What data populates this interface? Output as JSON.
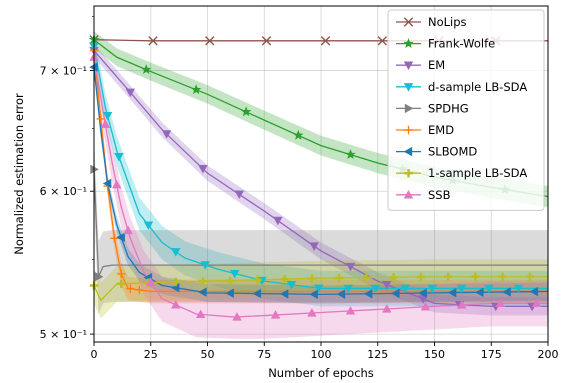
{
  "chart_data": {
    "type": "line",
    "xlabel": "Number of epochs",
    "ylabel": "Normalized estimation error",
    "xlim": [
      0,
      200
    ],
    "ylim": [
      0.495,
      0.76
    ],
    "yscale": "log",
    "grid": true,
    "legend_position": "top-right",
    "x_ticks": [
      0,
      25,
      50,
      75,
      100,
      125,
      150,
      175,
      200
    ],
    "x_tick_labels": [
      "0",
      "25",
      "50",
      "75",
      "100",
      "125",
      "150",
      "175",
      "200"
    ],
    "y_ticks": [
      0.5,
      0.6,
      0.7
    ],
    "y_tick_labels": [
      "5 × 10⁻¹",
      "6 × 10⁻¹",
      "7 × 10⁻¹"
    ],
    "series": [
      {
        "name": "NoLips",
        "color": "#8c564b",
        "marker": "x",
        "band": 0.0,
        "points": [
          [
            0,
            0.728
          ],
          [
            25,
            0.727
          ],
          [
            50,
            0.727
          ],
          [
            75,
            0.727
          ],
          [
            100,
            0.727
          ],
          [
            125,
            0.727
          ],
          [
            150,
            0.727
          ],
          [
            175,
            0.727
          ],
          [
            200,
            0.727
          ]
        ],
        "marker_x": [
          0,
          26,
          51,
          76,
          102,
          127,
          152,
          177
        ]
      },
      {
        "name": "Frank-Wolfe",
        "color": "#2ca02c",
        "marker": "star",
        "band": 0.008,
        "points": [
          [
            0,
            0.728
          ],
          [
            10,
            0.712
          ],
          [
            25,
            0.699
          ],
          [
            50,
            0.679
          ],
          [
            75,
            0.657
          ],
          [
            100,
            0.636
          ],
          [
            125,
            0.622
          ],
          [
            150,
            0.611
          ],
          [
            175,
            0.603
          ],
          [
            200,
            0.596
          ]
        ],
        "marker_x": [
          0,
          23,
          45,
          67,
          90,
          113,
          136,
          158,
          181
        ]
      },
      {
        "name": "EM",
        "color": "#9467bd",
        "marker": "tri_down",
        "band": 0.006,
        "points": [
          [
            0,
            0.718
          ],
          [
            15,
            0.683
          ],
          [
            30,
            0.649
          ],
          [
            50,
            0.614
          ],
          [
            75,
            0.585
          ],
          [
            100,
            0.556
          ],
          [
            125,
            0.535
          ],
          [
            150,
            0.52
          ],
          [
            175,
            0.518
          ],
          [
            200,
            0.518
          ]
        ],
        "marker_x": [
          0,
          16,
          32,
          48,
          64,
          81,
          97,
          113,
          129,
          145,
          161,
          177,
          193
        ]
      },
      {
        "name": "d-sample LB-SDA",
        "color": "#17becf",
        "marker": "tri_down",
        "band": 0.012,
        "points": [
          [
            0,
            0.722
          ],
          [
            5,
            0.668
          ],
          [
            10,
            0.632
          ],
          [
            20,
            0.583
          ],
          [
            30,
            0.562
          ],
          [
            40,
            0.551
          ],
          [
            55,
            0.543
          ],
          [
            75,
            0.535
          ],
          [
            100,
            0.53
          ],
          [
            125,
            0.53
          ],
          [
            150,
            0.53
          ],
          [
            175,
            0.53
          ],
          [
            200,
            0.53
          ]
        ],
        "marker_x": [
          0,
          6,
          11,
          24,
          36,
          49,
          62,
          74,
          87,
          99,
          112,
          124,
          137,
          149,
          162,
          174,
          187
        ]
      },
      {
        "name": "SPDHG",
        "color": "#7f7f7f",
        "marker": "tri_right",
        "band": 0.025,
        "points": [
          [
            0,
            0.617
          ],
          [
            2,
            0.538
          ],
          [
            4,
            0.545
          ],
          [
            8,
            0.546
          ],
          [
            20,
            0.546
          ],
          [
            50,
            0.546
          ],
          [
            100,
            0.546
          ],
          [
            150,
            0.546
          ],
          [
            200,
            0.546
          ]
        ],
        "marker_x": [
          0,
          2
        ]
      },
      {
        "name": "EMD",
        "color": "#ff7f0e",
        "marker": "plus",
        "band": 0.008,
        "points": [
          [
            0,
            0.718
          ],
          [
            3,
            0.658
          ],
          [
            6,
            0.604
          ],
          [
            9,
            0.565
          ],
          [
            12,
            0.54
          ],
          [
            15,
            0.53
          ],
          [
            25,
            0.528
          ],
          [
            50,
            0.528
          ],
          [
            100,
            0.528
          ],
          [
            150,
            0.528
          ],
          [
            200,
            0.528
          ]
        ],
        "marker_x": [
          0,
          3,
          6,
          9,
          12,
          16,
          20
        ]
      },
      {
        "name": "SLBOMD",
        "color": "#1f77b4",
        "marker": "tri_left",
        "band": 0.006,
        "points": [
          [
            0,
            0.703
          ],
          [
            3,
            0.648
          ],
          [
            6,
            0.606
          ],
          [
            10,
            0.575
          ],
          [
            15,
            0.552
          ],
          [
            20,
            0.541
          ],
          [
            30,
            0.532
          ],
          [
            50,
            0.527
          ],
          [
            100,
            0.526
          ],
          [
            150,
            0.527
          ],
          [
            200,
            0.528
          ]
        ],
        "marker_x": [
          0,
          6,
          12,
          24,
          36,
          48,
          60,
          72,
          84,
          97,
          109,
          121,
          133,
          145,
          158,
          170,
          182,
          194
        ]
      },
      {
        "name": "1-sample LB-SDA",
        "color": "#bcbd22",
        "marker": "plus_heavy",
        "band": 0.012,
        "points": [
          [
            0,
            0.532
          ],
          [
            3,
            0.522
          ],
          [
            10,
            0.533
          ],
          [
            25,
            0.534
          ],
          [
            50,
            0.535
          ],
          [
            100,
            0.537
          ],
          [
            150,
            0.538
          ],
          [
            200,
            0.538
          ]
        ],
        "marker_x": [
          0,
          12,
          24,
          36,
          48,
          60,
          72,
          84,
          96,
          108,
          120,
          132,
          144,
          156,
          168,
          180,
          192
        ]
      },
      {
        "name": "SSB",
        "color": "#e377c2",
        "marker": "tri_up",
        "band": 0.015,
        "points": [
          [
            0,
            0.712
          ],
          [
            4,
            0.664
          ],
          [
            8,
            0.622
          ],
          [
            12,
            0.588
          ],
          [
            16,
            0.565
          ],
          [
            22,
            0.541
          ],
          [
            30,
            0.523
          ],
          [
            45,
            0.513
          ],
          [
            62,
            0.511
          ],
          [
            75,
            0.512
          ],
          [
            100,
            0.514
          ],
          [
            125,
            0.516
          ],
          [
            150,
            0.518
          ],
          [
            175,
            0.52
          ],
          [
            200,
            0.52
          ]
        ],
        "marker_x": [
          0,
          5,
          10,
          15,
          25,
          36,
          47,
          63,
          80,
          96,
          113,
          129,
          146,
          162,
          179,
          195
        ]
      }
    ]
  }
}
